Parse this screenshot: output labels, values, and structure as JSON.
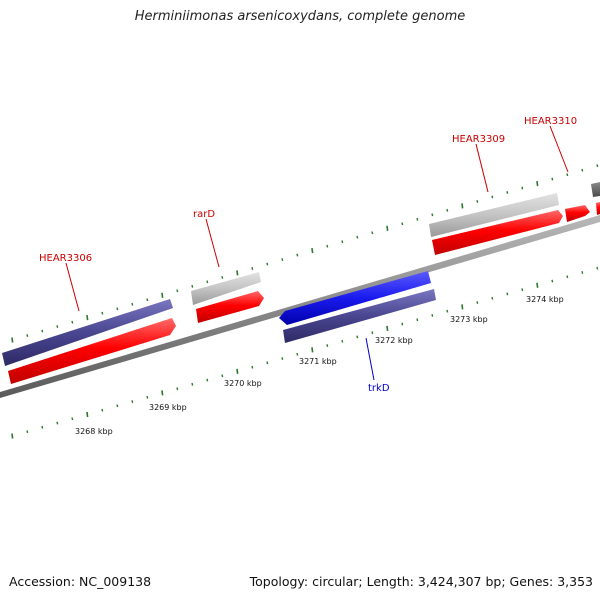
{
  "title": "Herminiimonas arsenicoxydans, complete genome",
  "accession": "Accession: NC_009138",
  "summary": "Topology: circular; Length: 3,424,307 bp; Genes: 3,353",
  "scale_labels": [
    "3268 kbp",
    "3269 kbp",
    "3270 kbp",
    "3271 kbp",
    "3272 kbp",
    "3273 kbp",
    "3274 kbp"
  ],
  "gene_labels": [
    {
      "text": "HEAR3306",
      "color": "#cc0000"
    },
    {
      "text": "rarD",
      "color": "#cc0000"
    },
    {
      "text": "HEAR3309",
      "color": "#cc0000"
    },
    {
      "text": "HEAR3310",
      "color": "#cc0000"
    },
    {
      "text": "trkD",
      "color": "#0000cc"
    }
  ],
  "colors": {
    "backbone": "#808080",
    "cds": "#ff0000",
    "gene_plus": "#c0c0c0",
    "gene_minus": "#4a4690",
    "trk_cds": "#1a1aee",
    "tick": "#2a7a2a"
  }
}
